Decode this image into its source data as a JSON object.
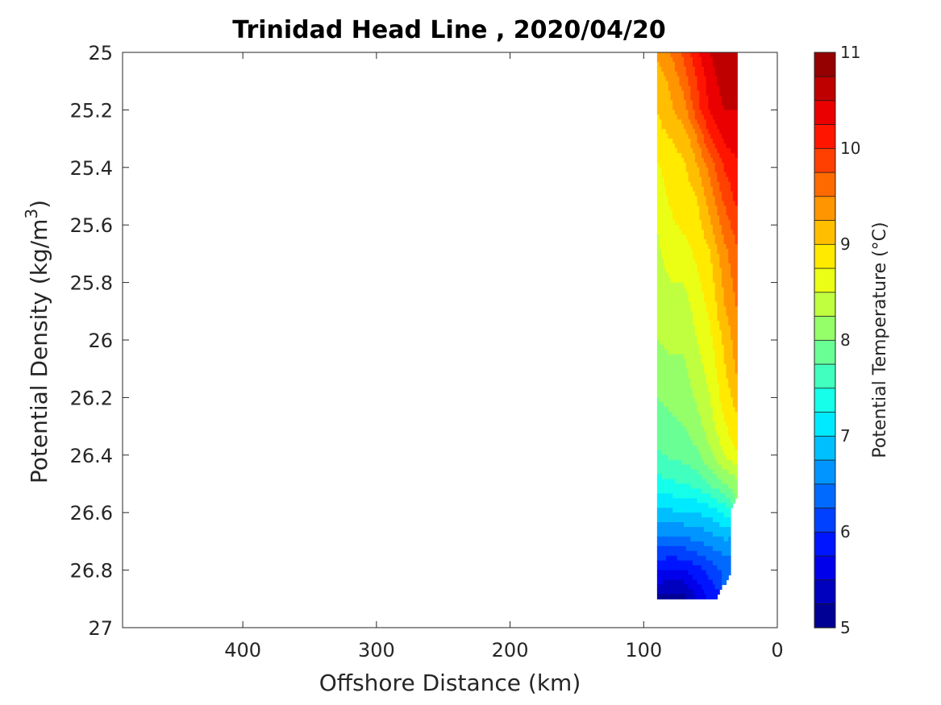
{
  "chart_data": {
    "type": "heatmap",
    "title": "Trinidad Head Line , 2020/04/20",
    "xlabel": "Offshore Distance (km)",
    "ylabel": "Potential Density (kg/m",
    "ylabel_sup": "3",
    "ylabel_close": ")",
    "colorbar_label": "Potential Temperature (°C)",
    "xlim": [
      490,
      0
    ],
    "ylim": [
      25,
      27
    ],
    "x_reversed": true,
    "y_reversed": true,
    "xticks": [
      400,
      300,
      200,
      100,
      0
    ],
    "yticks": [
      25,
      25.2,
      25.4,
      25.6,
      25.8,
      26,
      26.2,
      26.4,
      26.6,
      26.8,
      27
    ],
    "ytick_labels": [
      "25",
      "25.2",
      "25.4",
      "25.6",
      "25.8",
      "26",
      "26.2",
      "26.4",
      "26.6",
      "26.8",
      "27"
    ],
    "colorbar_range": [
      5,
      11
    ],
    "colorbar_step": 0.25,
    "colorbar_ticks": [
      5,
      6,
      7,
      8,
      9,
      10,
      11
    ],
    "colormap": "jet",
    "grid": false,
    "x": [
      90,
      80,
      70,
      60,
      50,
      40,
      30
    ],
    "y": [
      25.0,
      25.1,
      25.2,
      25.3,
      25.4,
      25.5,
      25.6,
      25.7,
      25.8,
      25.9,
      26.0,
      26.1,
      26.2,
      26.3,
      26.4,
      26.5,
      26.6,
      26.7,
      26.8,
      26.9
    ],
    "values": [
      [
        9.3,
        9.5,
        9.8,
        10.2,
        10.5,
        10.7,
        10.7
      ],
      [
        9.1,
        9.3,
        9.6,
        10.0,
        10.4,
        10.6,
        10.6
      ],
      [
        9.0,
        9.2,
        9.4,
        9.9,
        10.3,
        10.5,
        10.5
      ],
      [
        8.9,
        9.0,
        9.1,
        9.5,
        10.0,
        10.3,
        10.4
      ],
      [
        8.7,
        8.9,
        8.95,
        9.2,
        9.6,
        10.0,
        10.2
      ],
      [
        8.6,
        8.8,
        8.9,
        9.0,
        9.4,
        9.8,
        10.1
      ],
      [
        8.5,
        8.7,
        8.8,
        8.9,
        9.2,
        9.6,
        9.9
      ],
      [
        8.45,
        8.6,
        8.65,
        8.8,
        9.0,
        9.4,
        9.7
      ],
      [
        8.4,
        8.5,
        8.5,
        8.7,
        8.9,
        9.3,
        9.6
      ],
      [
        8.3,
        8.4,
        8.35,
        8.6,
        8.8,
        9.2,
        9.5
      ],
      [
        8.25,
        8.3,
        8.3,
        8.5,
        8.7,
        9.05,
        9.4
      ],
      [
        8.15,
        8.2,
        8.2,
        8.4,
        8.6,
        8.95,
        9.3
      ],
      [
        8.0,
        8.05,
        8.1,
        8.3,
        8.5,
        8.85,
        9.1
      ],
      [
        7.9,
        7.95,
        8.0,
        8.15,
        8.4,
        8.7,
        8.95
      ],
      [
        7.7,
        7.8,
        7.85,
        7.95,
        8.2,
        8.5,
        8.75
      ],
      [
        7.4,
        7.45,
        7.5,
        7.6,
        7.8,
        8.0,
        8.1
      ],
      [
        6.9,
        6.95,
        7.0,
        7.0,
        7.1,
        7.3,
        null
      ],
      [
        6.4,
        6.35,
        6.4,
        6.5,
        6.6,
        6.7,
        null
      ],
      [
        5.8,
        5.7,
        5.75,
        5.9,
        6.1,
        6.3,
        null
      ],
      [
        5.2,
        5.1,
        5.15,
        5.5,
        5.8,
        null,
        null
      ]
    ]
  }
}
